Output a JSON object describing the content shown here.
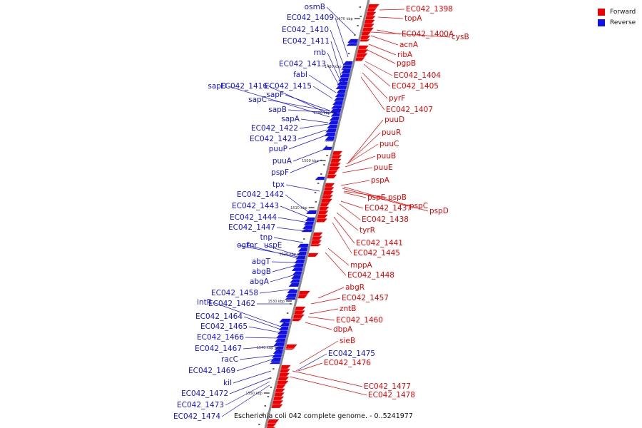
{
  "legend": [
    {
      "label": "Forward",
      "color": "#f00000"
    },
    {
      "label": "Reverse",
      "color": "#1010f0"
    }
  ],
  "footer": "Escherichia coli 042 complete genome. - 0..5241977",
  "colors": {
    "forward": "#f00000",
    "reverse": "#1010f0",
    "backbone": "#888888"
  },
  "ticks": [
    "1470 kbp",
    "1480 kbp",
    "1490 kbp",
    "1500 kbp",
    "1510 kbp",
    "1520 kbp",
    "1530 kbp",
    "1540 kbp",
    "1550 kbp"
  ],
  "reverse_labels": [
    "osmB",
    "EC042_1409",
    "EC042_1410",
    "EC042_1411",
    "rnb",
    "EC042_1413",
    "fabI",
    "sapD",
    "EC042_1416",
    "EC042_1415",
    "sapF",
    "sapC",
    "sapB",
    "sapA",
    "EC042_1422",
    "EC042_1423",
    "puuP",
    "puuA",
    "pspF",
    "tpx",
    "EC042_1442",
    "EC042_1443",
    "EC042_1444",
    "EC042_1447",
    "tnp",
    "ogt",
    "fnr",
    "uspE",
    "abgT",
    "abgB",
    "abgA",
    "EC042_1458",
    "intR",
    "EC042_1462",
    "EC042_1464",
    "EC042_1465",
    "EC042_1466",
    "EC042_1467",
    "racC",
    "EC042_1469",
    "kil",
    "EC042_1472",
    "EC042_1473",
    "EC042_1474",
    "EC042_1475"
  ],
  "forward_labels": [
    "EC042_1398",
    "topA",
    "EC042_1400A",
    "cysB",
    "acnA",
    "ribA",
    "pgpB",
    "EC042_1404",
    "EC042_1405",
    "pyrF",
    "EC042_1407",
    "puuD",
    "puuR",
    "puuC",
    "puuB",
    "puuE",
    "pspA",
    "pspE",
    "pspB",
    "pspC",
    "pspD",
    "EC042_1437",
    "EC042_1438",
    "tyrR",
    "EC042_1441",
    "EC042_1445",
    "mppA",
    "EC042_1448",
    "abgR",
    "EC042_1457",
    "zntB",
    "EC042_1460",
    "dbpA",
    "sieB",
    "EC042_1476",
    "EC042_1477",
    "EC042_1478"
  ]
}
